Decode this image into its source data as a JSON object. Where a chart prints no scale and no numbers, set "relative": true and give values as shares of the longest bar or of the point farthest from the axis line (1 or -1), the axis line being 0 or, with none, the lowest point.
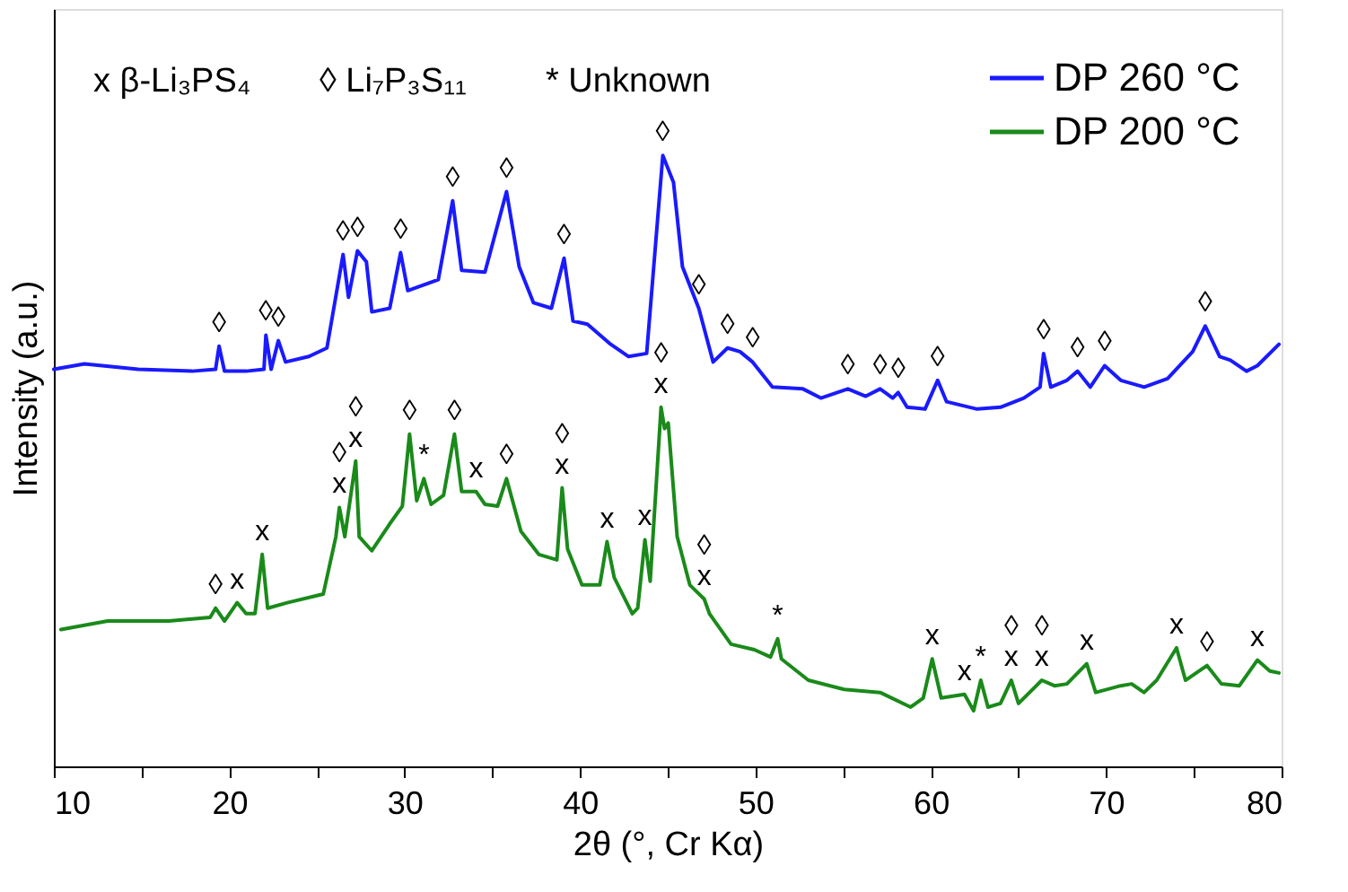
{
  "chart_data": {
    "type": "line",
    "relative": true,
    "xlabel": "2θ (°, Cr Kα)",
    "ylabel": "Intensity (a.u.)",
    "xlim": [
      10,
      80
    ],
    "xticks": [
      10,
      {
        "value": 15,
        "label": null
      },
      20,
      {
        "value": 25,
        "label": null
      },
      30,
      {
        "value": 35,
        "label": null
      },
      40,
      {
        "value": 45,
        "label": null
      },
      50,
      {
        "value": 55,
        "label": null
      },
      60,
      {
        "value": 65,
        "label": null
      },
      70,
      {
        "value": 75,
        "label": null
      },
      80
    ],
    "grid": false,
    "legend": "top right",
    "tick_labels": "x",
    "series": [
      {
        "name": "DP 260 °C",
        "color": "#1a1aff",
        "x": [
          10,
          11.74,
          14.81,
          17.89,
          19.22,
          19.42,
          19.73,
          20.96,
          21.98,
          22.09,
          22.39,
          22.8,
          23.21,
          24.54,
          25.57,
          26.49,
          26.8,
          27.31,
          27.82,
          28.13,
          29.15,
          29.77,
          30.18,
          31.92,
          32.74,
          33.25,
          34.58,
          35.81,
          36.53,
          37.35,
          38.37,
          39.09,
          39.6,
          40.42,
          41.75,
          42.77,
          43.8,
          44.72,
          45.33,
          45.84,
          46.77,
          47.59,
          48.41,
          49.12,
          49.84,
          50.97,
          52.71,
          53.73,
          55.27,
          56.29,
          57.11,
          57.83,
          58.14,
          58.65,
          59.67,
          60.39,
          60.9,
          62.64,
          63.97,
          65.3,
          66.23,
          66.43,
          66.84,
          67.76,
          68.37,
          69.09,
          69.91,
          70.83,
          72.16,
          73.5,
          74.93,
          75.65,
          76.47,
          77.08,
          78.0,
          78.62,
          79.85
        ],
        "values": [
          0.65,
          0.659,
          0.65,
          0.647,
          0.65,
          0.688,
          0.647,
          0.647,
          0.65,
          0.706,
          0.65,
          0.697,
          0.662,
          0.671,
          0.685,
          0.838,
          0.768,
          0.844,
          0.826,
          0.744,
          0.75,
          0.841,
          0.779,
          0.797,
          0.926,
          0.812,
          0.809,
          0.941,
          0.818,
          0.759,
          0.75,
          0.832,
          0.729,
          0.724,
          0.691,
          0.671,
          0.676,
          1,
          0.956,
          0.818,
          0.75,
          0.662,
          0.685,
          0.679,
          0.662,
          0.621,
          0.618,
          0.603,
          0.618,
          0.606,
          0.618,
          0.603,
          0.612,
          0.588,
          0.585,
          0.632,
          0.597,
          0.585,
          0.588,
          0.603,
          0.621,
          0.676,
          0.621,
          0.632,
          0.647,
          0.621,
          0.656,
          0.632,
          0.621,
          0.635,
          0.679,
          0.721,
          0.671,
          0.665,
          0.647,
          0.656,
          0.691
        ]
      },
      {
        "name": "DP 200 °C",
        "color": "#1a8a1a",
        "x": [
          10.41,
          13.07,
          16.55,
          18.91,
          19.22,
          19.73,
          20.45,
          20.96,
          21.47,
          21.88,
          22.19,
          23.31,
          25.36,
          26.08,
          26.28,
          26.59,
          27.21,
          27.41,
          28.13,
          29.15,
          29.87,
          30.28,
          30.69,
          31.1,
          31.51,
          32.22,
          32.84,
          33.25,
          34.07,
          34.58,
          35.3,
          35.81,
          36.63,
          37.65,
          38.68,
          38.98,
          39.29,
          40.11,
          41.13,
          41.54,
          41.95,
          42.98,
          43.29,
          43.7,
          44.0,
          44.62,
          44.82,
          45.03,
          45.54,
          46.26,
          47.08,
          47.38,
          48.61,
          49.94,
          50.86,
          51.27,
          51.48,
          53.02,
          55.06,
          57.11,
          58.85,
          59.57,
          60.08,
          60.59,
          61.92,
          62.44,
          62.85,
          63.26,
          63.97,
          64.59,
          65.0,
          66.33,
          67.05,
          67.76,
          68.89,
          69.4,
          70.83,
          71.45,
          72.16,
          72.88,
          74.01,
          74.52,
          75.75,
          76.57,
          77.59,
          78.62,
          79.33,
          79.85
        ],
        "values": [
          0.224,
          0.238,
          0.238,
          0.244,
          0.259,
          0.238,
          0.268,
          0.25,
          0.25,
          0.347,
          0.259,
          0.268,
          0.282,
          0.376,
          0.424,
          0.376,
          0.5,
          0.376,
          0.353,
          0.397,
          0.426,
          0.544,
          0.435,
          0.471,
          0.429,
          0.444,
          0.544,
          0.45,
          0.45,
          0.429,
          0.426,
          0.471,
          0.385,
          0.347,
          0.338,
          0.456,
          0.356,
          0.297,
          0.297,
          0.368,
          0.309,
          0.25,
          0.259,
          0.371,
          0.303,
          0.588,
          0.553,
          0.562,
          0.376,
          0.297,
          0.274,
          0.25,
          0.2,
          0.191,
          0.179,
          0.209,
          0.176,
          0.141,
          0.126,
          0.121,
          0.097,
          0.112,
          0.176,
          0.112,
          0.118,
          0.091,
          0.141,
          0.097,
          0.103,
          0.141,
          0.103,
          0.141,
          0.132,
          0.135,
          0.168,
          0.121,
          0.132,
          0.135,
          0.121,
          0.141,
          0.194,
          0.141,
          0.165,
          0.135,
          0.132,
          0.174,
          0.156,
          0.153
        ]
      }
    ],
    "annotations": [
      "x β-Li₃PS₄",
      "◊ Li₇P₃S₁₁",
      "* Unknown",
      {
        "text": "◊",
        "x": 19.42,
        "y": 0.688
      },
      {
        "text": "◊",
        "x": 22.09,
        "y": 0.706
      },
      {
        "text": "◊",
        "x": 22.8,
        "y": 0.697
      },
      {
        "text": "◊",
        "x": 26.49,
        "y": 0.838
      },
      {
        "text": "◊",
        "x": 27.31,
        "y": 0.844
      },
      {
        "text": "◊",
        "x": 29.77,
        "y": 0.841
      },
      {
        "text": "◊",
        "x": 32.74,
        "y": 0.926
      },
      {
        "text": "◊",
        "x": 35.81,
        "y": 0.941
      },
      {
        "text": "◊",
        "x": 39.09,
        "y": 0.832
      },
      {
        "text": "◊",
        "x": 44.72,
        "y": 1
      },
      {
        "text": "◊",
        "x": 46.77,
        "y": 0.75
      },
      {
        "text": "◊",
        "x": 48.41,
        "y": 0.685
      },
      {
        "text": "◊",
        "x": 49.84,
        "y": 0.662
      },
      {
        "text": "◊",
        "x": 55.27,
        "y": 0.618
      },
      {
        "text": "◊",
        "x": 57.11,
        "y": 0.618
      },
      {
        "text": "◊",
        "x": 58.14,
        "y": 0.612
      },
      {
        "text": "◊",
        "x": 60.39,
        "y": 0.632
      },
      {
        "text": "◊",
        "x": 66.43,
        "y": 0.676
      },
      {
        "text": "◊",
        "x": 68.37,
        "y": 0.647
      },
      {
        "text": "◊",
        "x": 69.91,
        "y": 0.656
      },
      {
        "text": "◊",
        "x": 75.65,
        "y": 0.721
      },
      {
        "text": "◊",
        "x": 19.22,
        "y": 0.259
      },
      {
        "text": "x",
        "x": 20.45,
        "y": 0.268
      },
      {
        "text": "x",
        "x": 21.88,
        "y": 0.347
      },
      {
        "text": "◊",
        "x": 26.28,
        "y": 0.424
      },
      {
        "text": "x",
        "x": 26.28,
        "y": 0.424
      },
      {
        "text": "◊",
        "x": 27.21,
        "y": 0.5
      },
      {
        "text": "x",
        "x": 27.21,
        "y": 0.5
      },
      {
        "text": "◊",
        "x": 30.28,
        "y": 0.544
      },
      {
        "text": "*",
        "x": 31.1,
        "y": 0.471
      },
      {
        "text": "◊",
        "x": 32.84,
        "y": 0.544
      },
      {
        "text": "x",
        "x": 34.07,
        "y": 0.45
      },
      {
        "text": "◊",
        "x": 35.81,
        "y": 0.471
      },
      {
        "text": "◊",
        "x": 38.98,
        "y": 0.456
      },
      {
        "text": "x",
        "x": 38.98,
        "y": 0.456
      },
      {
        "text": "x",
        "x": 41.54,
        "y": 0.368
      },
      {
        "text": "x",
        "x": 43.7,
        "y": 0.371
      },
      {
        "text": "◊",
        "x": 44.62,
        "y": 0.588
      },
      {
        "text": "x",
        "x": 44.62,
        "y": 0.588
      },
      {
        "text": "◊",
        "x": 47.08,
        "y": 0.274
      },
      {
        "text": "x",
        "x": 47.08,
        "y": 0.274
      },
      {
        "text": "*",
        "x": 51.27,
        "y": 0.209
      },
      {
        "text": "x",
        "x": 60.08,
        "y": 0.176
      },
      {
        "text": "x",
        "x": 61.92,
        "y": 0.118
      },
      {
        "text": "*",
        "x": 62.85,
        "y": 0.141
      },
      {
        "text": "◊",
        "x": 64.59,
        "y": 0.141
      },
      {
        "text": "x",
        "x": 64.59,
        "y": 0.141
      },
      {
        "text": "◊",
        "x": 66.33,
        "y": 0.141
      },
      {
        "text": "x",
        "x": 66.33,
        "y": 0.141
      },
      {
        "text": "x",
        "x": 68.89,
        "y": 0.168
      },
      {
        "text": "x",
        "x": 74.01,
        "y": 0.194
      },
      {
        "text": "◊",
        "x": 75.75,
        "y": 0.165
      },
      {
        "text": "x",
        "x": 78.62,
        "y": 0.174
      }
    ]
  }
}
